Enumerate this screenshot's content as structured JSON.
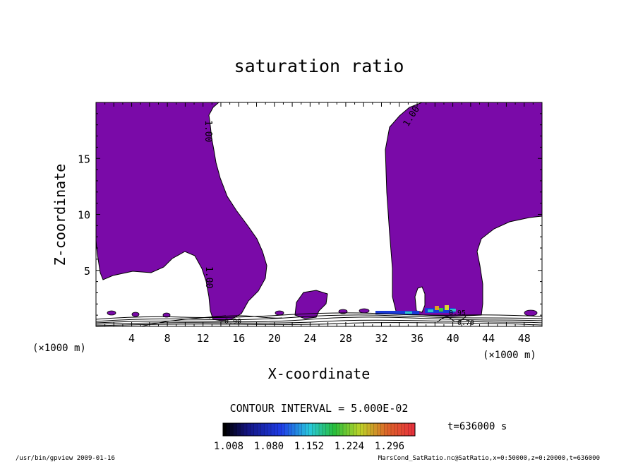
{
  "chart_data": {
    "type": "contour",
    "title": "saturation ratio",
    "xlabel": "X-coordinate",
    "ylabel": "Z-coordinate",
    "x_unit": "(×1000 m)",
    "x_unit_right": "(×1000 m)",
    "xlim": [
      0,
      50
    ],
    "ylim": [
      0,
      20
    ],
    "x_ticks": [
      4,
      8,
      12,
      16,
      20,
      24,
      28,
      32,
      36,
      40,
      44,
      48
    ],
    "y_ticks": [
      5,
      10,
      15
    ],
    "contour_labels": [
      "1.00",
      "1.00",
      "1.00",
      "0.90",
      "0.95",
      "0.70"
    ],
    "contour_interval_text": "CONTOUR INTERVAL = 5.000E-02",
    "time_text": "t=636000 s",
    "colorbar": {
      "labels": [
        "1.008",
        "1.080",
        "1.152",
        "1.224",
        "1.296"
      ],
      "min": 1.008,
      "max": 1.296
    },
    "fill_color": "#7a0aa8",
    "footer_left": "/usr/bin/gpview  2009-01-16",
    "footer_right": "MarsCond_SatRatio.nc@SatRatio,x=0:50000,z=0:20000,t=636000"
  }
}
